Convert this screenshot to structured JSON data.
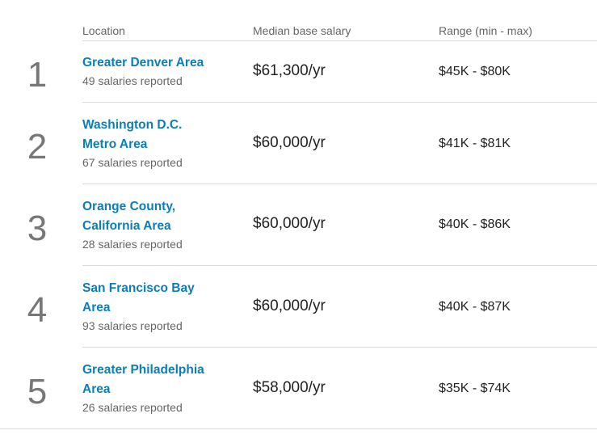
{
  "table": {
    "headers": {
      "location": "Location",
      "median": "Median base salary",
      "range": "Range (min - max)"
    },
    "rows": [
      {
        "rank": "1",
        "location_line1": "Greater Denver Area",
        "location_line2": "",
        "salaries_reported": "49 salaries reported",
        "median": "$61,300/yr",
        "range": "$45K - $80K"
      },
      {
        "rank": "2",
        "location_line1": "Washington D.C.",
        "location_line2": "Metro Area",
        "salaries_reported": "67 salaries reported",
        "median": "$60,000/yr",
        "range": "$41K - $81K"
      },
      {
        "rank": "3",
        "location_line1": "Orange County,",
        "location_line2": "California Area",
        "salaries_reported": "28 salaries reported",
        "median": "$60,000/yr",
        "range": "$40K - $86K"
      },
      {
        "rank": "4",
        "location_line1": "San Francisco Bay",
        "location_line2": "Area",
        "salaries_reported": "93 salaries reported",
        "median": "$60,000/yr",
        "range": "$40K - $87K"
      },
      {
        "rank": "5",
        "location_line1": "Greater Philadelphia",
        "location_line2": "Area",
        "salaries_reported": "26 salaries reported",
        "median": "$58,000/yr",
        "range": "$35K - $74K"
      }
    ]
  },
  "colors": {
    "link": "#0b7fb5",
    "rank": "#777777",
    "divider": "#dcdcdc"
  }
}
